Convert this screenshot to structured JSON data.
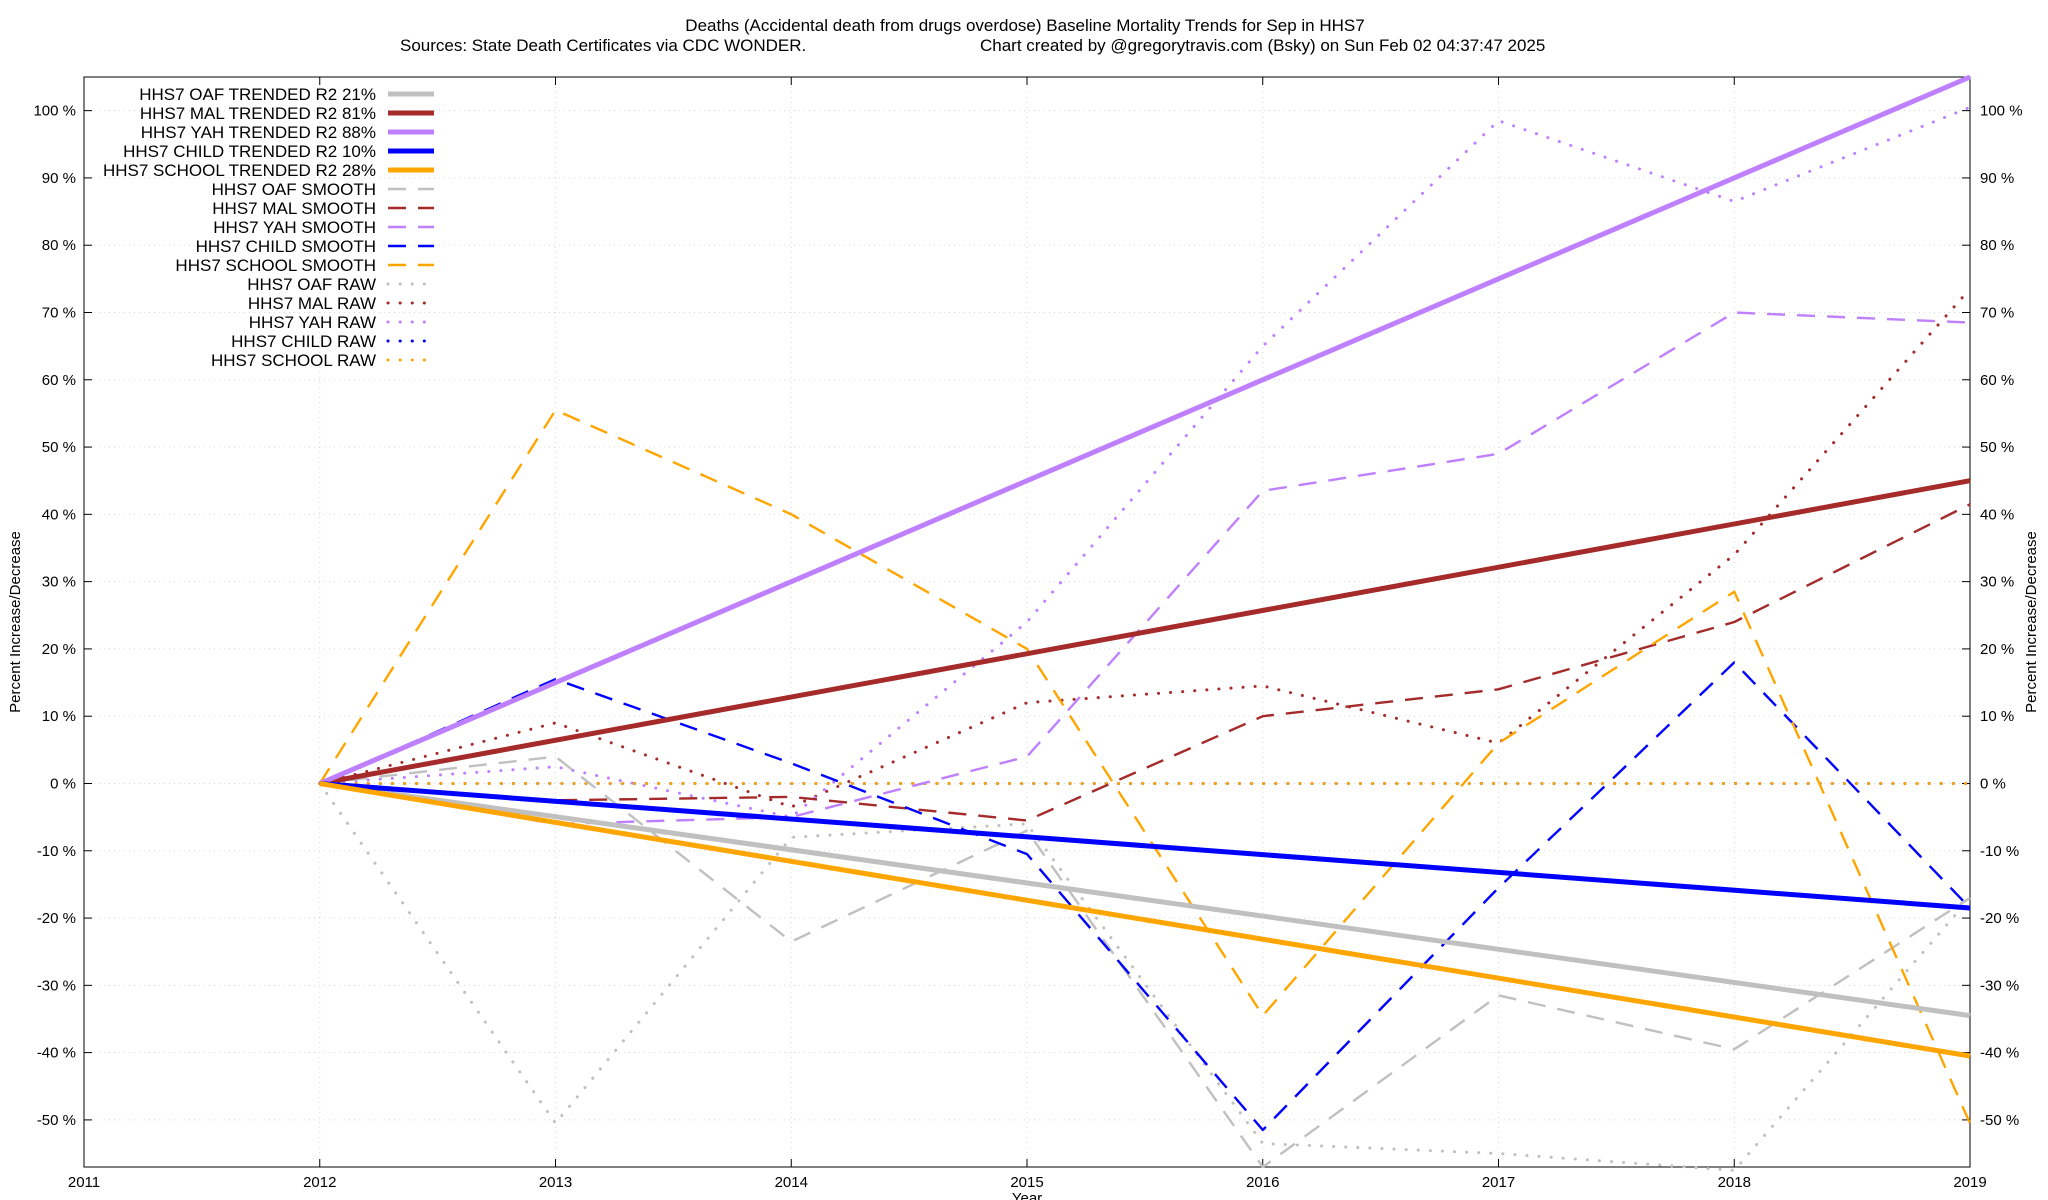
{
  "header": {
    "title_line1": "Deaths (Accidental death from drugs overdose)  Baseline Mortality Trends for Sep in HHS7",
    "title_line2_left": "Sources: State Death Certificates via CDC WONDER.",
    "title_line2_right": "Chart created by @gregorytravis.com (Bsky) on Sun Feb 02 04:37:47 2025"
  },
  "chart_data": {
    "type": "line",
    "xlabel": "Year",
    "ylabel": "Percent Increase/Decrease",
    "xlim": [
      2011,
      2019
    ],
    "ylim": [
      -57,
      105
    ],
    "x_ticks": [
      "2011",
      "2012",
      "2013",
      "2014",
      "2015",
      "2016",
      "2017",
      "2018",
      "2019"
    ],
    "y_ticks": [
      "-50 %",
      "-40 %",
      "-30 %",
      "-20 %",
      "-10 %",
      "0 %",
      "10 %",
      "20 %",
      "30 %",
      "40 %",
      "50 %",
      "60 %",
      "70 %",
      "80 %",
      "90 %",
      "100 %"
    ],
    "grid": true,
    "legend_position": "top-left",
    "colors": {
      "OAF": "#c0c0c0",
      "MAL": "#a52a2a",
      "YAH": "#bf80ff",
      "CHILD": "#0000ff",
      "SCHOOL": "#ffa500"
    },
    "series": [
      {
        "name": "HHS7 OAF TRENDED R2  21%",
        "group": "OAF",
        "style": "solid",
        "x": [
          2012,
          2019
        ],
        "y": [
          0,
          -34.5
        ]
      },
      {
        "name": "HHS7 MAL TRENDED R2  81%",
        "group": "MAL",
        "style": "solid",
        "x": [
          2012,
          2019
        ],
        "y": [
          0,
          45
        ]
      },
      {
        "name": "HHS7 YAH TRENDED R2  88%",
        "group": "YAH",
        "style": "solid",
        "x": [
          2012,
          2019
        ],
        "y": [
          0,
          105
        ]
      },
      {
        "name": "HHS7 CHILD TRENDED R2  10%",
        "group": "CHILD",
        "style": "solid",
        "x": [
          2012,
          2019
        ],
        "y": [
          0,
          -18.5
        ]
      },
      {
        "name": "HHS7 SCHOOL TRENDED R2  28%",
        "group": "SCHOOL",
        "style": "solid",
        "x": [
          2012,
          2019
        ],
        "y": [
          0,
          -40.5
        ]
      },
      {
        "name": "HHS7 OAF SMOOTH",
        "group": "OAF",
        "style": "dashed",
        "x": [
          2012,
          2013,
          2014,
          2015,
          2016,
          2017,
          2018,
          2019
        ],
        "y": [
          0,
          4,
          -23.5,
          -7,
          -57,
          -31.5,
          -39.5,
          -17
        ]
      },
      {
        "name": "HHS7 MAL SMOOTH",
        "group": "MAL",
        "style": "dashed",
        "x": [
          2012,
          2013,
          2014,
          2015,
          2016,
          2017,
          2018,
          2019
        ],
        "y": [
          0,
          -2.5,
          -2,
          -5.5,
          10,
          14,
          24,
          41.5
        ]
      },
      {
        "name": "HHS7 YAH SMOOTH",
        "group": "YAH",
        "style": "dashed",
        "x": [
          2012,
          2013,
          2014,
          2015,
          2016,
          2017,
          2018,
          2019
        ],
        "y": [
          0,
          -6,
          -5,
          4,
          43.5,
          49,
          70,
          68.5
        ]
      },
      {
        "name": "HHS7 CHILD SMOOTH",
        "group": "CHILD",
        "style": "dashed",
        "x": [
          2012,
          2013,
          2014,
          2015,
          2016,
          2017,
          2018,
          2019
        ],
        "y": [
          0,
          15.5,
          3,
          -10.5,
          -51.5,
          -15.5,
          18,
          -18.5
        ]
      },
      {
        "name": "HHS7 SCHOOL SMOOTH",
        "group": "SCHOOL",
        "style": "dashed",
        "x": [
          2012,
          2013,
          2014,
          2015,
          2016,
          2017,
          2018,
          2019
        ],
        "y": [
          0,
          55.5,
          40,
          20,
          -34.5,
          6,
          28.5,
          -50.5
        ]
      },
      {
        "name": "HHS7 OAF RAW",
        "group": "OAF",
        "style": "dotted",
        "x": [
          2012,
          2013,
          2014,
          2015,
          2016,
          2017,
          2018,
          2019
        ],
        "y": [
          0,
          -50.5,
          -8,
          -6,
          -53.5,
          -55,
          -57.5,
          -17
        ]
      },
      {
        "name": "HHS7 MAL RAW",
        "group": "MAL",
        "style": "dotted",
        "x": [
          2012,
          2013,
          2014,
          2015,
          2016,
          2017,
          2018,
          2019
        ],
        "y": [
          0,
          9,
          -3.5,
          12,
          14.5,
          6,
          34,
          73.5
        ]
      },
      {
        "name": "HHS7 YAH RAW",
        "group": "YAH",
        "style": "dotted",
        "x": [
          2012,
          2013,
          2014,
          2015,
          2016,
          2017,
          2018,
          2019
        ],
        "y": [
          0,
          2.5,
          -5,
          24,
          65,
          98.5,
          86.5,
          100.5
        ]
      },
      {
        "name": "HHS7 CHILD RAW",
        "group": "CHILD",
        "style": "dotted",
        "x": [
          2012,
          2013,
          2014,
          2015,
          2016,
          2017,
          2018,
          2019
        ],
        "y": [
          0,
          0,
          0,
          0,
          0,
          0,
          0,
          0
        ]
      },
      {
        "name": "HHS7 SCHOOL RAW",
        "group": "SCHOOL",
        "style": "dotted",
        "x": [
          2012,
          2019
        ],
        "y": [
          0,
          0
        ]
      }
    ]
  }
}
